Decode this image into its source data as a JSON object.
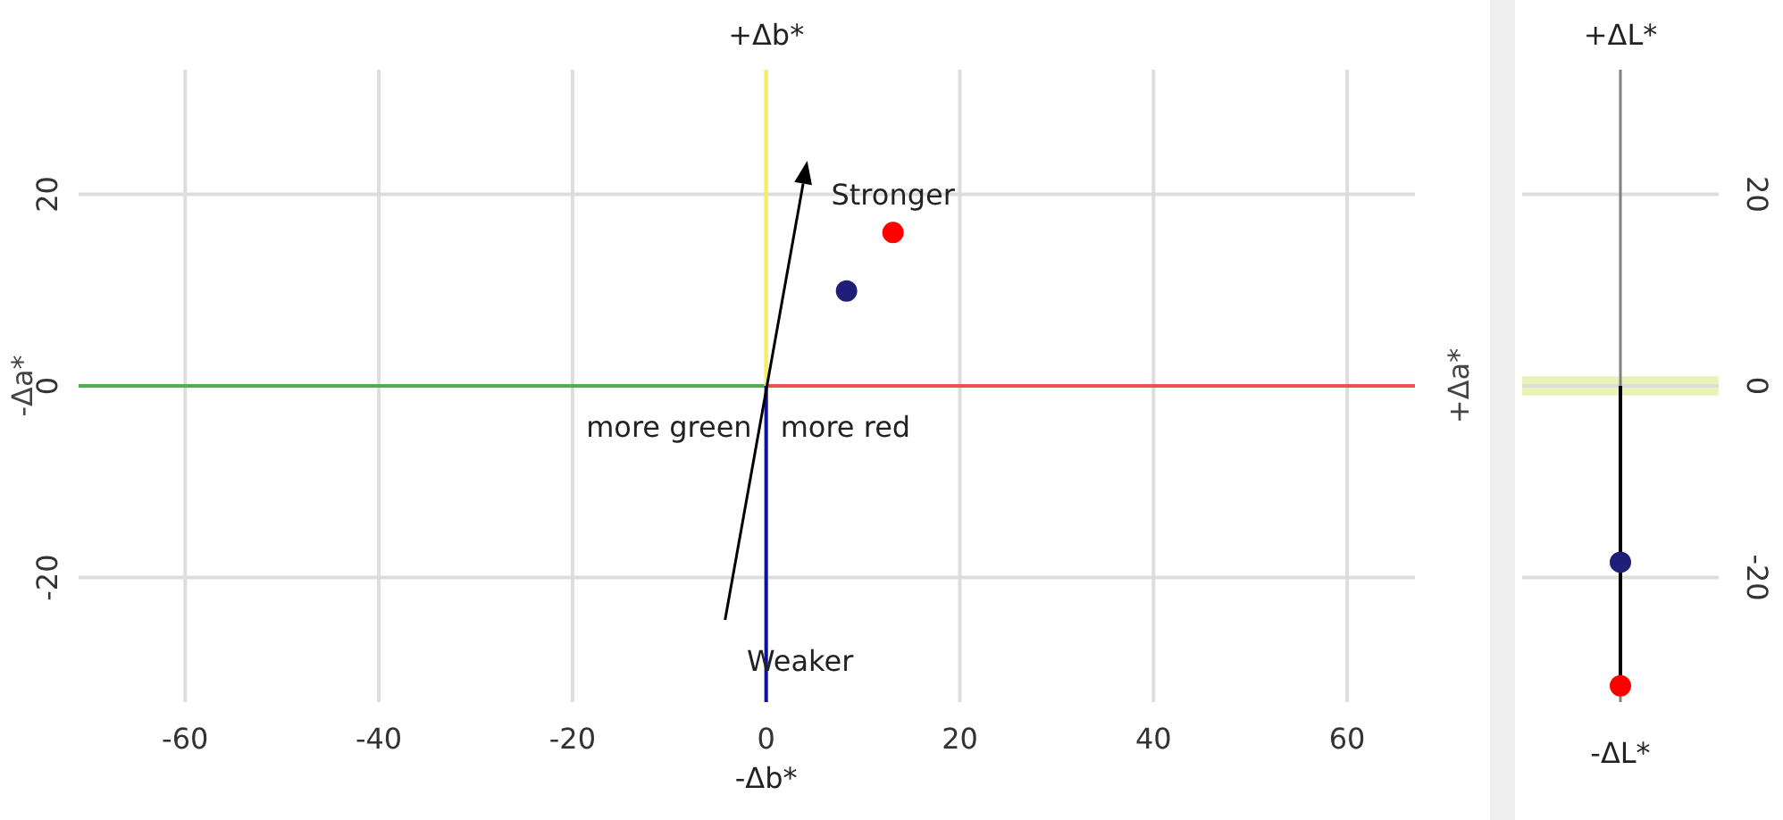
{
  "chart_data": [
    {
      "type": "scatter",
      "title": "+Δb*",
      "xlabel": "-Δb*",
      "ylabel": "-Δa*",
      "y2label": "+Δa*",
      "xlim": [
        -71,
        67
      ],
      "xticks": [
        -60,
        -40,
        -20,
        0,
        20,
        40,
        60
      ],
      "ylim": [
        -33,
        33
      ],
      "yticks": [
        -20,
        0,
        20
      ],
      "grid": true,
      "series": [
        {
          "type": "line",
          "color": "#4caf50",
          "x": [
            -71,
            0
          ],
          "values": [
            0,
            0
          ]
        },
        {
          "type": "line",
          "color": "#f05050",
          "x": [
            0,
            67
          ],
          "values": [
            0,
            0
          ]
        },
        {
          "type": "line",
          "color": "#f5f060",
          "x": [
            0,
            0
          ],
          "values": [
            0,
            33
          ]
        },
        {
          "type": "line",
          "color": "#1010a0",
          "x": [
            0,
            0
          ],
          "values": [
            0,
            -33
          ]
        },
        {
          "type": "scatter",
          "color": "#ff0000",
          "x": [
            13.1
          ],
          "values": [
            16
          ],
          "marker": "circle"
        },
        {
          "type": "scatter",
          "color": "#1f1f7a",
          "x": [
            8.3
          ],
          "values": [
            9.9
          ],
          "marker": "circle"
        }
      ],
      "annotations": [
        "Stronger",
        "Weaker",
        "more green",
        "more red"
      ]
    },
    {
      "type": "scatter",
      "title": "+ΔL*",
      "xlabel": "-ΔL*",
      "categories": [
        null
      ],
      "ylim": [
        -33,
        33
      ],
      "yticks": [
        -20,
        0,
        20
      ],
      "grid": "y",
      "tick_labels": "y",
      "bands": [
        {
          "axis": "y",
          "from": -1,
          "to": 1,
          "color": "#e8f3b8"
        }
      ],
      "series": [
        {
          "type": "lollipop",
          "color": "#ff0000",
          "values": [
            -31.3
          ],
          "marker": "circle"
        },
        {
          "type": "scatter",
          "color": "#1f1f7a",
          "values": [
            -18.4
          ],
          "marker": "circle"
        }
      ]
    }
  ]
}
